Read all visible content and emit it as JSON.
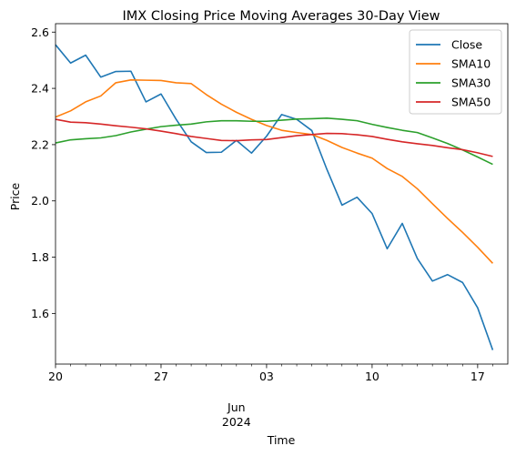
{
  "chart_data": {
    "type": "line",
    "title": "IMX Closing Price Moving Averages 30-Day View",
    "xlabel": "Time",
    "ylabel": "Price",
    "ylim": [
      1.42,
      2.63
    ],
    "yticks": [
      1.6,
      1.8,
      2.0,
      2.2,
      2.4,
      2.6
    ],
    "ytick_labels": [
      "1.6",
      "1.8",
      "2.0",
      "2.2",
      "2.4",
      "2.6"
    ],
    "xlim": [
      0,
      30
    ],
    "x_dates": [
      "2024-05-20",
      "2024-05-21",
      "2024-05-22",
      "2024-05-23",
      "2024-05-24",
      "2024-05-25",
      "2024-05-26",
      "2024-05-27",
      "2024-05-28",
      "2024-05-29",
      "2024-05-30",
      "2024-05-31",
      "2024-06-01",
      "2024-06-02",
      "2024-06-03",
      "2024-06-04",
      "2024-06-05",
      "2024-06-06",
      "2024-06-07",
      "2024-06-08",
      "2024-06-09",
      "2024-06-10",
      "2024-06-11",
      "2024-06-12",
      "2024-06-13",
      "2024-06-14",
      "2024-06-15",
      "2024-06-16",
      "2024-06-17",
      "2024-06-18"
    ],
    "xticks_major": [
      {
        "x": 0,
        "label": "20"
      },
      {
        "x": 7,
        "label": "27"
      },
      {
        "x": 14,
        "label": "03"
      },
      {
        "x": 21,
        "label": "10"
      },
      {
        "x": 28,
        "label": "17"
      }
    ],
    "xticks_minor": [
      1,
      2,
      3,
      4,
      5,
      6,
      8,
      9,
      10,
      11,
      12,
      13,
      15,
      16,
      17,
      18,
      19,
      20,
      22,
      23,
      24,
      25,
      26,
      27,
      29
    ],
    "x_sublabel_month": "Jun",
    "x_sublabel_year": "2024",
    "x_sublabel_at": 12,
    "legend_position": "top-right",
    "grid": false,
    "series": [
      {
        "name": "Close",
        "color": "#1f77b4",
        "values": [
          2.555,
          2.49,
          2.518,
          2.44,
          2.46,
          2.461,
          2.352,
          2.38,
          2.29,
          2.21,
          2.172,
          2.173,
          2.215,
          2.17,
          2.23,
          2.307,
          2.29,
          2.25,
          2.112,
          1.985,
          2.013,
          1.955,
          1.83,
          1.92,
          1.795,
          1.715,
          1.738,
          1.71,
          1.62,
          1.47
        ]
      },
      {
        "name": "SMA10",
        "color": "#ff7f0e",
        "values": [
          2.298,
          2.32,
          2.352,
          2.373,
          2.42,
          2.43,
          2.429,
          2.428,
          2.42,
          2.417,
          2.378,
          2.344,
          2.315,
          2.29,
          2.268,
          2.251,
          2.243,
          2.236,
          2.215,
          2.19,
          2.17,
          2.152,
          2.115,
          2.087,
          2.043,
          1.99,
          1.938,
          1.888,
          1.835,
          1.778
        ]
      },
      {
        "name": "SMA30",
        "color": "#2ca02c",
        "values": [
          2.206,
          2.217,
          2.221,
          2.224,
          2.232,
          2.245,
          2.255,
          2.264,
          2.269,
          2.273,
          2.281,
          2.285,
          2.285,
          2.283,
          2.283,
          2.287,
          2.291,
          2.292,
          2.294,
          2.29,
          2.285,
          2.272,
          2.261,
          2.251,
          2.243,
          2.224,
          2.204,
          2.181,
          2.156,
          2.13
        ]
      },
      {
        "name": "SMA50",
        "color": "#d62728",
        "values": [
          2.29,
          2.28,
          2.278,
          2.273,
          2.267,
          2.262,
          2.256,
          2.248,
          2.239,
          2.229,
          2.222,
          2.215,
          2.214,
          2.217,
          2.218,
          2.225,
          2.232,
          2.236,
          2.24,
          2.239,
          2.235,
          2.229,
          2.219,
          2.21,
          2.203,
          2.197,
          2.189,
          2.182,
          2.171,
          2.158
        ]
      }
    ]
  }
}
